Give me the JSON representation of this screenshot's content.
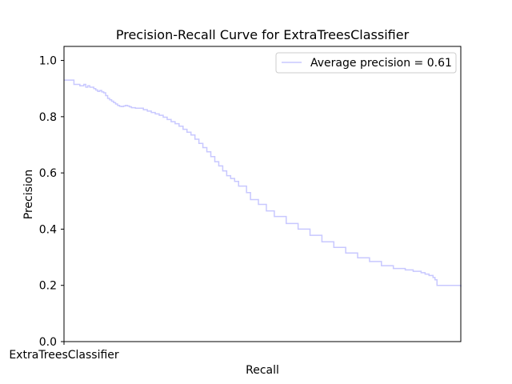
{
  "chart_data": {
    "type": "line",
    "title": "Precision-Recall Curve for ExtraTreesClassifier",
    "xlabel": "Recall",
    "ylabel": "Precision",
    "xlim": [
      0,
      1
    ],
    "ylim": [
      0,
      1.05
    ],
    "x_tick_labels": [
      "ExtraTreesClassifier"
    ],
    "y_ticks": [
      0.0,
      0.2,
      0.4,
      0.6,
      0.8,
      1.0
    ],
    "y_tick_labels": [
      "0.0",
      "0.2",
      "0.4",
      "0.6",
      "0.8",
      "1.0"
    ],
    "grid": false,
    "legend_position": "top-right",
    "series": [
      {
        "name": "Average precision = 0.61",
        "color": "#c8c8ff",
        "step": true,
        "x": [
          0,
          0.025,
          0.04,
          0.05,
          0.055,
          0.06,
          0.065,
          0.075,
          0.08,
          0.085,
          0.09,
          0.095,
          0.1,
          0.105,
          0.11,
          0.115,
          0.12,
          0.125,
          0.13,
          0.135,
          0.14,
          0.145,
          0.15,
          0.155,
          0.16,
          0.165,
          0.17,
          0.18,
          0.19,
          0.2,
          0.21,
          0.22,
          0.23,
          0.24,
          0.25,
          0.26,
          0.27,
          0.28,
          0.29,
          0.3,
          0.31,
          0.32,
          0.33,
          0.34,
          0.35,
          0.36,
          0.37,
          0.38,
          0.39,
          0.4,
          0.41,
          0.42,
          0.43,
          0.44,
          0.45,
          0.46,
          0.47,
          0.49,
          0.51,
          0.53,
          0.56,
          0.59,
          0.62,
          0.65,
          0.68,
          0.71,
          0.74,
          0.77,
          0.8,
          0.83,
          0.86,
          0.88,
          0.9,
          0.91,
          0.92,
          0.93,
          0.935,
          0.94,
          0.95,
          0.955,
          0.96,
          0.965,
          0.97,
          0.975,
          0.98,
          0.985,
          0.99,
          0.995,
          1.0
        ],
        "y": [
          0.93,
          0.915,
          0.91,
          0.915,
          0.905,
          0.91,
          0.905,
          0.9,
          0.895,
          0.89,
          0.893,
          0.888,
          0.885,
          0.875,
          0.865,
          0.86,
          0.855,
          0.85,
          0.845,
          0.84,
          0.837,
          0.836,
          0.838,
          0.84,
          0.838,
          0.835,
          0.832,
          0.83,
          0.83,
          0.825,
          0.82,
          0.815,
          0.81,
          0.805,
          0.798,
          0.79,
          0.782,
          0.775,
          0.766,
          0.755,
          0.745,
          0.735,
          0.72,
          0.705,
          0.69,
          0.675,
          0.658,
          0.64,
          0.625,
          0.607,
          0.59,
          0.58,
          0.57,
          0.553,
          0.553,
          0.53,
          0.505,
          0.488,
          0.465,
          0.445,
          0.42,
          0.4,
          0.378,
          0.355,
          0.335,
          0.315,
          0.298,
          0.285,
          0.27,
          0.26,
          0.255,
          0.25,
          0.245,
          0.24,
          0.235,
          0.228,
          0.22,
          0.2,
          0.2,
          0.2,
          0.2,
          0.2,
          0.2,
          0.2,
          0.2,
          0.2,
          0.2,
          0.2,
          0.195
        ]
      }
    ]
  }
}
